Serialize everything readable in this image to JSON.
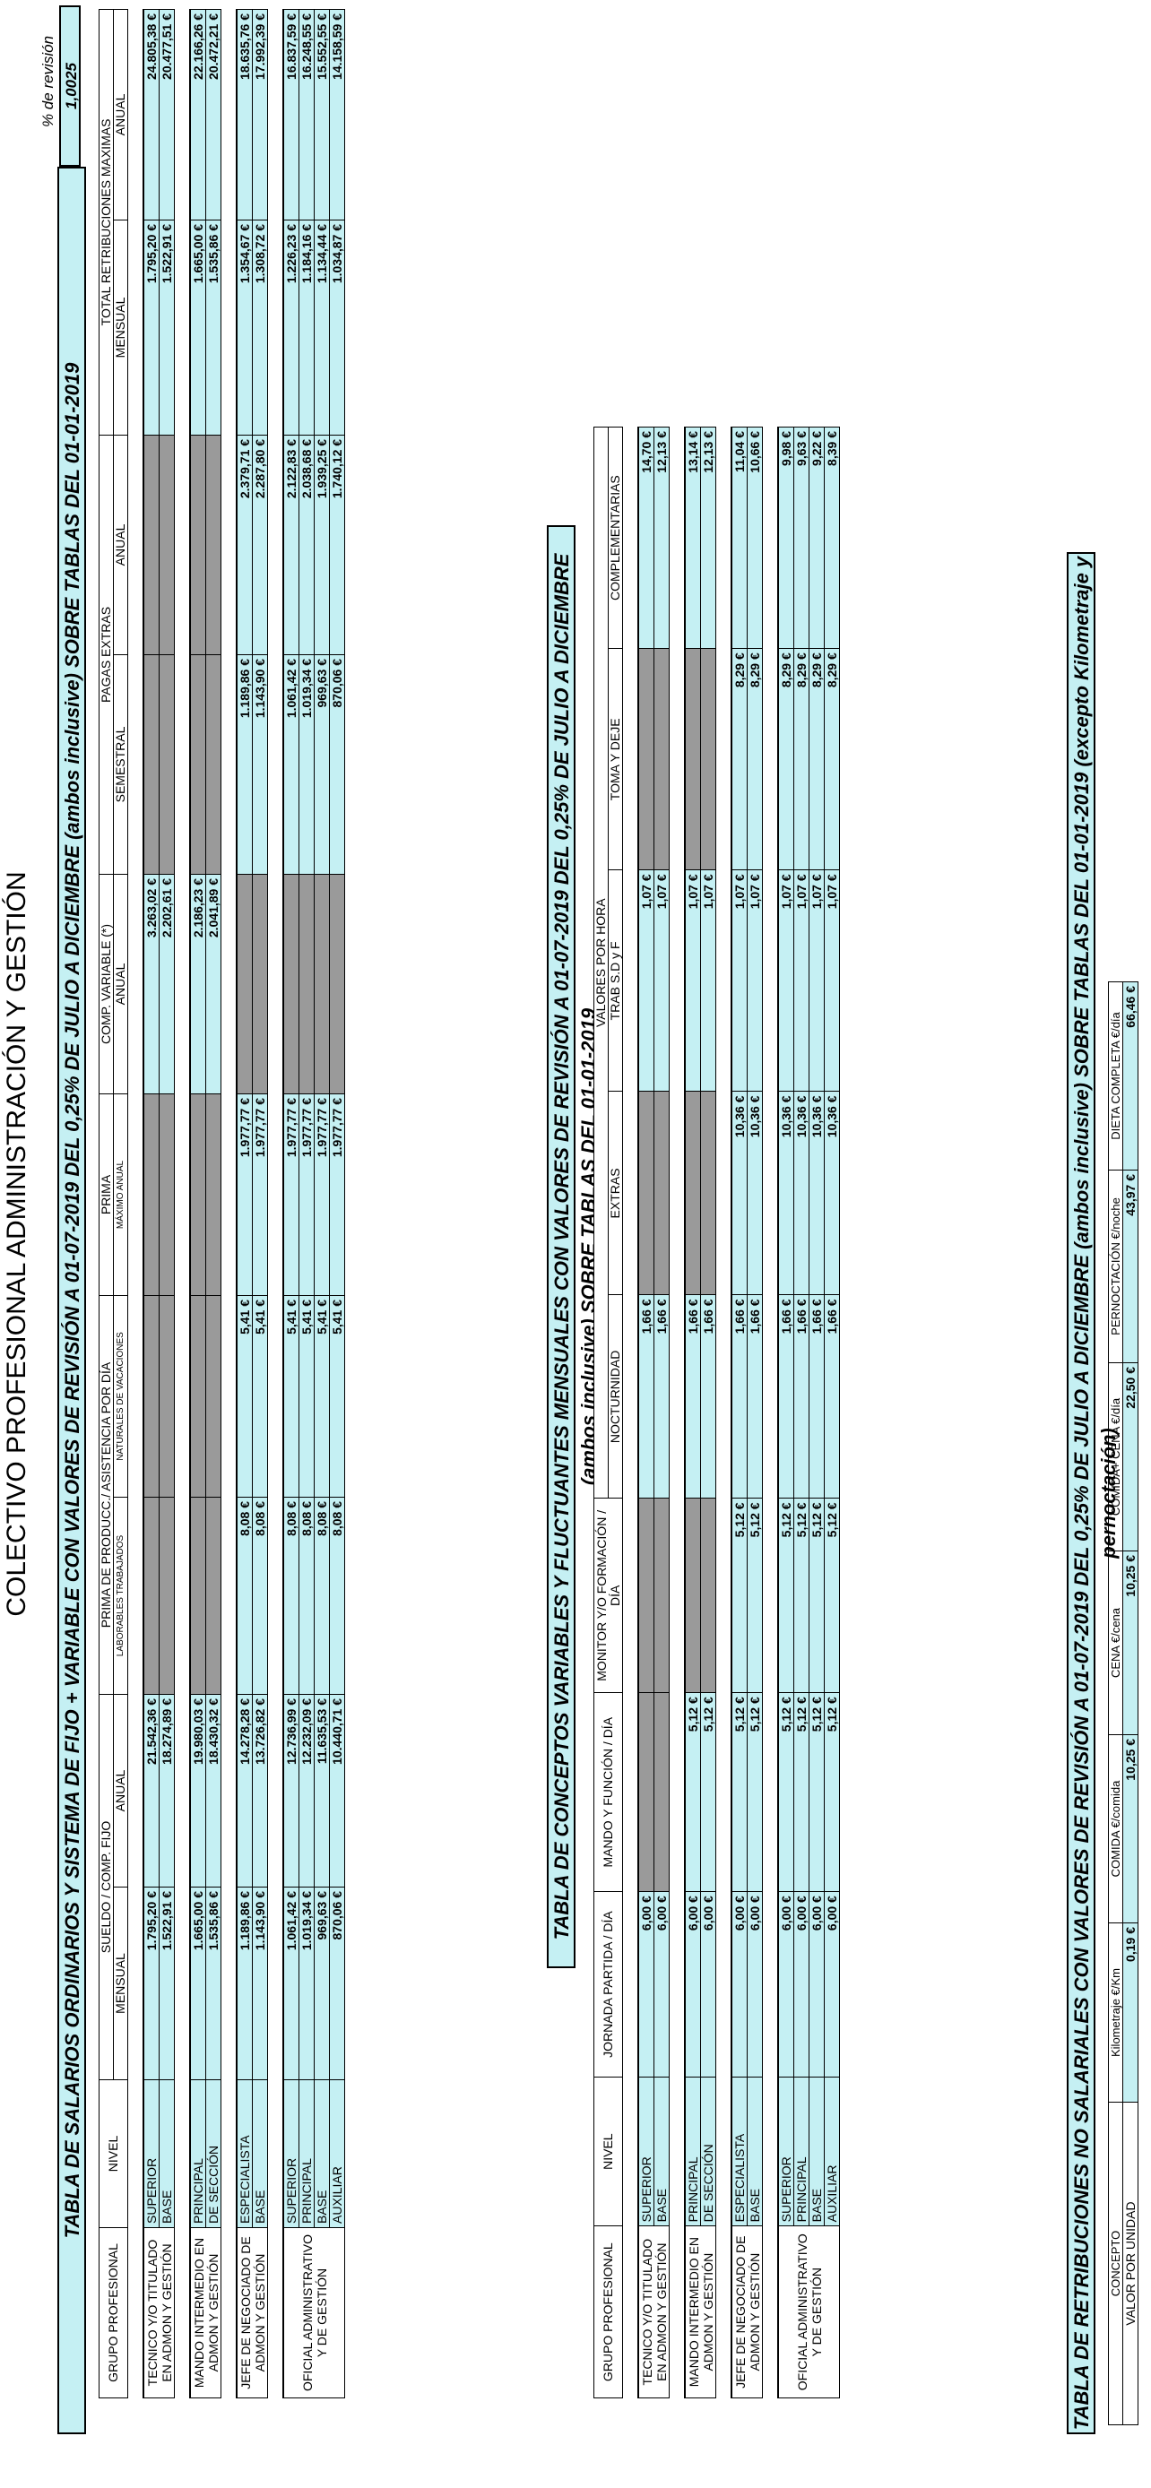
{
  "title": "COLECTIVO PROFESIONAL ADMINISTRACIÓN Y GESTIÓN",
  "revision": {
    "label": "% de revisión",
    "value": "1,0025"
  },
  "table1": {
    "title": "TABLA DE SALARIOS ORDINARIOS Y SISTEMA DE FIJO + VARIABLE CON VALORES DE REVISIÓN A 01-07-2019 DEL 0,25% DE JULIO A DICIEMBRE (ambos inclusive) SOBRE TABLAS DEL 01-01-2019",
    "headers": {
      "grupo": "GRUPO PROFESIONAL",
      "nivel": "NIVEL",
      "sueldo": "SUELDO / COMP. FIJO",
      "mensual": "MENSUAL",
      "anual": "ANUAL",
      "prima_producc": "PRIMA DE PRODUCC./ ASISTENCIA POR DÍA",
      "laborables": "LABORABLES TRABAJADOS",
      "naturales": "NATURALES DE VACACIONES",
      "prima": "PRIMA",
      "maximo_anual": "MÁXIMO ANUAL",
      "comp_variable": "COMP. VARIABLE (*)",
      "comp_anual": "ANUAL",
      "pagas": "PAGAS EXTRAS",
      "semestral": "SEMESTRAL",
      "pagas_anual": "ANUAL",
      "total": "TOTAL RETRIBUCIONES MAXIMAS",
      "total_mensual": "MENSUAL",
      "total_anual": "ANUAL"
    },
    "groups": [
      {
        "name": "TECNICO Y/O TITULADO EN ADMON Y GESTIÓN",
        "rows": [
          {
            "nivel": "SUPERIOR",
            "m": "1.795,20 €",
            "a": "21.542,36 €",
            "lab": "",
            "nat": "",
            "prima": "",
            "cv": "3.263,02 €",
            "sem": "",
            "pa": "",
            "tm": "1.795,20 €",
            "ta": "24.805,38 €"
          },
          {
            "nivel": "BASE",
            "m": "1.522,91 €",
            "a": "18.274,89 €",
            "lab": "",
            "nat": "",
            "prima": "",
            "cv": "2.202,61 €",
            "sem": "",
            "pa": "",
            "tm": "1.522,91 €",
            "ta": "20.477,51 €"
          }
        ]
      },
      {
        "name": "MANDO INTERMEDIO EN ADMON Y GESTIÓN",
        "rows": [
          {
            "nivel": "PRINCIPAL",
            "m": "1.665,00 €",
            "a": "19.980,03 €",
            "lab": "",
            "nat": "",
            "prima": "",
            "cv": "2.186,23 €",
            "sem": "",
            "pa": "",
            "tm": "1.665,00 €",
            "ta": "22.166,26 €"
          },
          {
            "nivel": "DE SECCIÓN",
            "m": "1.535,86 €",
            "a": "18.430,32 €",
            "lab": "",
            "nat": "",
            "prima": "",
            "cv": "2.041,89 €",
            "sem": "",
            "pa": "",
            "tm": "1.535,86 €",
            "ta": "20.472,21 €"
          }
        ]
      },
      {
        "name": "JEFE DE NEGOCIADO DE ADMON Y GESTIÓN",
        "rows": [
          {
            "nivel": "ESPECIALISTA",
            "m": "1.189,86 €",
            "a": "14.278,28 €",
            "lab": "8,08 €",
            "nat": "5,41 €",
            "prima": "1.977,77 €",
            "cv": "",
            "sem": "1.189,86 €",
            "pa": "2.379,71 €",
            "tm": "1.354,67 €",
            "ta": "18.635,76 €"
          },
          {
            "nivel": "BASE",
            "m": "1.143,90 €",
            "a": "13.726,82 €",
            "lab": "8,08 €",
            "nat": "5,41 €",
            "prima": "1.977,77 €",
            "cv": "",
            "sem": "1.143,90 €",
            "pa": "2.287,80 €",
            "tm": "1.308,72 €",
            "ta": "17.992,39 €"
          }
        ]
      },
      {
        "name": "OFICIAL ADMINISTRATIVO Y DE GESTIÓN",
        "rows": [
          {
            "nivel": "SUPERIOR",
            "m": "1.061,42 €",
            "a": "12.736,99 €",
            "lab": "8,08 €",
            "nat": "5,41 €",
            "prima": "1.977,77 €",
            "cv": "",
            "sem": "1.061,42 €",
            "pa": "2.122,83 €",
            "tm": "1.226,23 €",
            "ta": "16.837,59 €"
          },
          {
            "nivel": "PRINCIPAL",
            "m": "1.019,34 €",
            "a": "12.232,09 €",
            "lab": "8,08 €",
            "nat": "5,41 €",
            "prima": "1.977,77 €",
            "cv": "",
            "sem": "1.019,34 €",
            "pa": "2.038,68 €",
            "tm": "1.184,16 €",
            "ta": "16.248,55 €"
          },
          {
            "nivel": "BASE",
            "m": "969,63 €",
            "a": "11.635,53 €",
            "lab": "8,08 €",
            "nat": "5,41 €",
            "prima": "1.977,77 €",
            "cv": "",
            "sem": "969,63 €",
            "pa": "1.939,25 €",
            "tm": "1.134,44 €",
            "ta": "15.552,55 €"
          },
          {
            "nivel": "AUXILIAR",
            "m": "870,06 €",
            "a": "10.440,71 €",
            "lab": "8,08 €",
            "nat": "5,41 €",
            "prima": "1.977,77 €",
            "cv": "",
            "sem": "870,06 €",
            "pa": "1.740,12 €",
            "tm": "1.034,87 €",
            "ta": "14.158,59 €"
          }
        ]
      }
    ]
  },
  "table2": {
    "title": "TABLA DE CONCEPTOS VARIABLES Y FLUCTUANTES MENSUALES CON VALORES DE REVISIÓN A 01-07-2019 DEL 0,25% DE JULIO A DICIEMBRE (ambos inclusive) SOBRE TABLAS DEL 01-01-2019",
    "headers": {
      "grupo": "GRUPO PROFESIONAL",
      "nivel": "NIVEL",
      "jornada": "JORNADA PARTIDA / DÍA",
      "mando": "MANDO Y FUNCIÓN / DÍA",
      "monitor": "MONITOR Y/O FORMACIÓN / DÍA",
      "nocturnidad": "NOCTURNIDAD",
      "extras": "EXTRAS",
      "valores_hora": "VALORES POR HORA",
      "trab": "TRAB S.D y F",
      "toma": "TOMA Y DEJE",
      "complementarias": "COMPLEMENTARIAS"
    },
    "groups": [
      {
        "name": "TECNICO Y/O TITULADO EN ADMON Y GESTIÓN",
        "rows": [
          {
            "nivel": "SUPERIOR",
            "jp": "6,00 €",
            "mf": "",
            "mon": "",
            "noc": "1,66 €",
            "ext": "",
            "trab": "1,07 €",
            "toma": "",
            "comp": "14,70 €"
          },
          {
            "nivel": "BASE",
            "jp": "6,00 €",
            "mf": "",
            "mon": "",
            "noc": "1,66 €",
            "ext": "",
            "trab": "1,07 €",
            "toma": "",
            "comp": "12,13 €"
          }
        ]
      },
      {
        "name": "MANDO INTERMEDIO EN ADMON Y GESTIÓN",
        "rows": [
          {
            "nivel": "PRINCIPAL",
            "jp": "6,00 €",
            "mf": "5,12 €",
            "mon": "",
            "noc": "1,66 €",
            "ext": "",
            "trab": "1,07 €",
            "toma": "",
            "comp": "13,14 €"
          },
          {
            "nivel": "DE SECCIÓN",
            "jp": "6,00 €",
            "mf": "5,12 €",
            "mon": "",
            "noc": "1,66 €",
            "ext": "",
            "trab": "1,07 €",
            "toma": "",
            "comp": "12,13 €"
          }
        ]
      },
      {
        "name": "JEFE DE NEGOCIADO DE ADMON Y GESTIÓN",
        "rows": [
          {
            "nivel": "ESPECIALISTA",
            "jp": "6,00 €",
            "mf": "5,12 €",
            "mon": "5,12 €",
            "noc": "1,66 €",
            "ext": "10,36 €",
            "trab": "1,07 €",
            "toma": "8,29 €",
            "comp": "11,04 €"
          },
          {
            "nivel": "BASE",
            "jp": "6,00 €",
            "mf": "5,12 €",
            "mon": "5,12 €",
            "noc": "1,66 €",
            "ext": "10,36 €",
            "trab": "1,07 €",
            "toma": "8,29 €",
            "comp": "10,66 €"
          }
        ]
      },
      {
        "name": "OFICIAL ADMINISTRATIVO Y DE GESTIÓN",
        "rows": [
          {
            "nivel": "SUPERIOR",
            "jp": "6,00 €",
            "mf": "5,12 €",
            "mon": "5,12 €",
            "noc": "1,66 €",
            "ext": "10,36 €",
            "trab": "1,07 €",
            "toma": "8,29 €",
            "comp": "9,98 €"
          },
          {
            "nivel": "PRINCIPAL",
            "jp": "6,00 €",
            "mf": "5,12 €",
            "mon": "5,12 €",
            "noc": "1,66 €",
            "ext": "10,36 €",
            "trab": "1,07 €",
            "toma": "8,29 €",
            "comp": "9,63 €"
          },
          {
            "nivel": "BASE",
            "jp": "6,00 €",
            "mf": "5,12 €",
            "mon": "5,12 €",
            "noc": "1,66 €",
            "ext": "10,36 €",
            "trab": "1,07 €",
            "toma": "8,29 €",
            "comp": "9,22 €"
          },
          {
            "nivel": "AUXILIAR",
            "jp": "6,00 €",
            "mf": "5,12 €",
            "mon": "5,12 €",
            "noc": "1,66 €",
            "ext": "10,36 €",
            "trab": "1,07 €",
            "toma": "8,29 €",
            "comp": "8,39 €"
          }
        ]
      }
    ]
  },
  "table3": {
    "title": "TABLA DE RETRIBUCIONES NO SALARIALES CON VALORES DE REVISIÓN A 01-07-2019 DEL 0,25% DE JULIO A DICIEMBRE (ambos inclusive) SOBRE TABLAS DEL 01-01-2019 (excepto Kilometraje y pernoctación)",
    "headers": [
      "CONCEPTO",
      "Kilometraje €/Km",
      "COMIDA €/comida",
      "CENA €/cena",
      "COMIDA+ CENA €/día",
      "PERNOCTACIÓN €/noche",
      "DIETA COMPLETA €/día"
    ],
    "values": [
      "VALOR POR UNIDAD",
      "0,19 €",
      "10,25 €",
      "10,25 €",
      "22,50 €",
      "43,97 €",
      "66,46 €"
    ]
  },
  "colors": {
    "cyan": "#c5f0f3",
    "gray": "#9a9a9a"
  }
}
